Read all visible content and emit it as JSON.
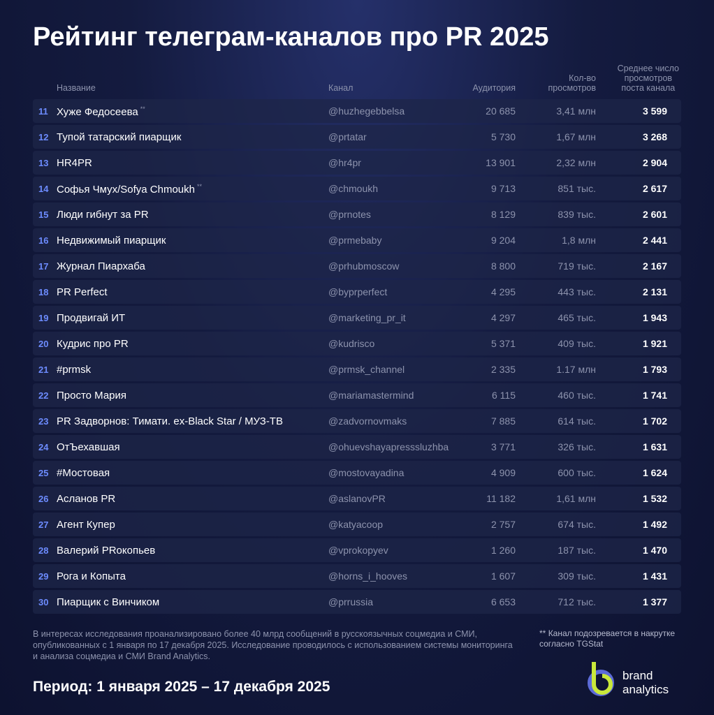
{
  "title": "Рейтинг телеграм-каналов про PR 2025",
  "table": {
    "headers": {
      "name": "Название",
      "channel": "Канал",
      "audience": "Аудитория",
      "views": [
        "Кол-во",
        "просмотров"
      ],
      "avg": [
        "Среднее число",
        "просмотров",
        "поста канала"
      ]
    },
    "rows": [
      {
        "rank": "11",
        "name": "Хуже Федосеева",
        "mark": "**",
        "channel": "@huzhegebbelsa",
        "audience": "20 685",
        "views": "3,41 млн",
        "avg": "3 599"
      },
      {
        "rank": "12",
        "name": "Тупой татарский пиарщик",
        "channel": "@prtatar",
        "audience": "5 730",
        "views": "1,67 млн",
        "avg": "3 268"
      },
      {
        "rank": "13",
        "name": "HR4PR",
        "channel": "@hr4pr",
        "audience": "13 901",
        "views": "2,32 млн",
        "avg": "2 904"
      },
      {
        "rank": "14",
        "name": "Софья Чмух/Sofya Chmoukh",
        "mark": "**",
        "channel": "@chmoukh",
        "audience": "9 713",
        "views": "851 тыс.",
        "avg": "2 617"
      },
      {
        "rank": "15",
        "name": "Люди гибнут за PR",
        "channel": "@prnotes",
        "audience": "8 129",
        "views": "839 тыс.",
        "avg": "2 601"
      },
      {
        "rank": "16",
        "name": "Недвижимый пиарщик",
        "channel": "@prmebaby",
        "audience": "9 204",
        "views": "1,8 млн",
        "avg": "2 441"
      },
      {
        "rank": "17",
        "name": "Журнал Пиархаба",
        "channel": "@prhubmoscow",
        "audience": "8 800",
        "views": "719 тыс.",
        "avg": "2 167"
      },
      {
        "rank": "18",
        "name": "PR Perfect",
        "channel": "@byprperfect",
        "audience": "4 295",
        "views": "443 тыс.",
        "avg": "2 131"
      },
      {
        "rank": "19",
        "name": "Продвигай ИТ",
        "channel": "@marketing_pr_it",
        "audience": "4 297",
        "views": "465 тыс.",
        "avg": "1 943"
      },
      {
        "rank": "20",
        "name": "Кудрис про PR",
        "channel": "@kudrisco",
        "audience": "5 371",
        "views": "409 тыс.",
        "avg": "1 921"
      },
      {
        "rank": "21",
        "name": "#prmsk",
        "channel": "@prmsk_channel",
        "audience": "2 335",
        "views": "1.17 млн",
        "avg": "1 793"
      },
      {
        "rank": "22",
        "name": "Просто Мария",
        "channel": "@mariamastermind",
        "audience": "6 115",
        "views": "460 тыс.",
        "avg": "1 741"
      },
      {
        "rank": "23",
        "name": "PR Задворнов: Тимати. ex-Black Star / МУЗ-ТВ",
        "channel": "@zadvornovmaks",
        "audience": "7 885",
        "views": "614 тыс.",
        "avg": "1 702"
      },
      {
        "rank": "24",
        "name": "ОтЪехавшая",
        "channel": "@ohuevshayapresssluzhba",
        "audience": "3 771",
        "views": "326 тыс.",
        "avg": "1 631"
      },
      {
        "rank": "25",
        "name": "#Мостовая",
        "channel": "@mostovayadina",
        "audience": "4 909",
        "views": "600 тыс.",
        "avg": "1 624"
      },
      {
        "rank": "26",
        "name": "Асланов PR",
        "channel": "@aslanovPR",
        "audience": "11 182",
        "views": "1,61 млн",
        "avg": "1 532"
      },
      {
        "rank": "27",
        "name": "Агент Купер",
        "channel": "@katyacoop",
        "audience": "2 757",
        "views": "674 тыс.",
        "avg": "1 492"
      },
      {
        "rank": "28",
        "name": "Валерий PRокопьев",
        "channel": "@vprokopyev",
        "audience": "1 260",
        "views": "187 тыс.",
        "avg": "1 470"
      },
      {
        "rank": "29",
        "name": "Рога и Копыта",
        "channel": "@horns_i_hooves",
        "audience": "1 607",
        "views": "309 тыс.",
        "avg": "1 431"
      },
      {
        "rank": "30",
        "name": "Пиарщик с Винчиком",
        "channel": "@prrussia",
        "audience": "6 653",
        "views": "712 тыс.",
        "avg": "1 377"
      }
    ]
  },
  "footnote": "В интересах исследования проанализировано более 40 млрд сообщений в русскоязычных соцмедиа и СМИ, опубликованных с 1 января по 17 декабря 2025. Исследование проводилось с использованием системы мониторинга и анализа соцмедиа и СМИ Brand Analytics.",
  "note": {
    "mark": "**",
    "text": "Канал подозревается в накрутке согласно TGStat"
  },
  "period": "Период: 1 января 2025 – 17 декабря 2025",
  "logo": [
    "brand",
    "analytics"
  ]
}
